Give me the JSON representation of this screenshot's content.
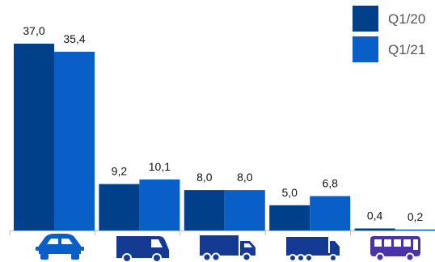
{
  "chart_data": {
    "type": "bar",
    "categories": [
      "passenger-car",
      "van",
      "medium-truck",
      "heavy-truck",
      "bus"
    ],
    "category_icons": [
      "car-icon",
      "van-icon",
      "medium-truck-icon",
      "heavy-truck-icon",
      "bus-icon"
    ],
    "series": [
      {
        "name": "Q1/20",
        "values": [
          37.0,
          9.2,
          8.0,
          5.0,
          0.4
        ],
        "labels": [
          "37,0",
          "9,2",
          "8,0",
          "5,0",
          "0,4"
        ],
        "color": "#003f8a"
      },
      {
        "name": "Q1/21",
        "values": [
          35.4,
          10.1,
          8.0,
          6.8,
          0.2
        ],
        "labels": [
          "35,4",
          "10,1",
          "8,0",
          "6,8",
          "0,2"
        ],
        "color": "#0a5ec8"
      }
    ],
    "title": "",
    "xlabel": "",
    "ylabel": "",
    "ylim": [
      0,
      37.0
    ],
    "grid": false,
    "legend": "top-right",
    "colors": {
      "icon_blue": "#0a5ec8",
      "icon_navy": "#143a93",
      "icon_purple": "#4a32a8",
      "axis": "#bbbbbb"
    }
  }
}
